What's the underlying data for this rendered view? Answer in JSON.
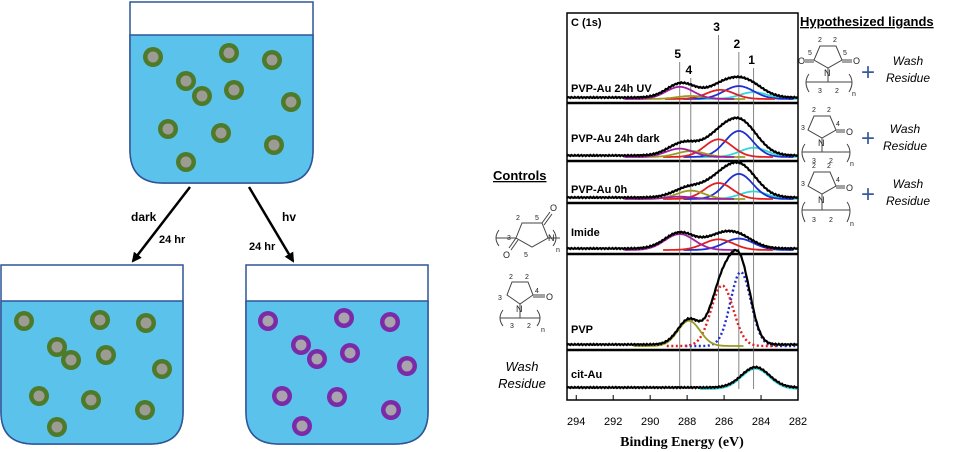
{
  "beakers": {
    "top_particle_type": "green",
    "dark": {
      "label": "dark",
      "time": "24 hr",
      "particle_type": "green"
    },
    "hv": {
      "label": "hv",
      "time": "24 hr",
      "particle_type": "purple"
    }
  },
  "colors": {
    "liquid": "#5bc3eb",
    "green_shell": "#4e7a2a",
    "green_core": "#9c9c94",
    "purple_shell": "#7b2aa8",
    "purple_core": "#a8a3ad",
    "cyan": "#33d6d6",
    "blue": "#1f2fd0",
    "red": "#e02020",
    "olive": "#9a9a20",
    "purple": "#a020a0",
    "cross": "#3a5aa0"
  },
  "xps": {
    "panel_label": "C (1s)",
    "xlabel": "Binding Energy (eV)",
    "xticks": [
      "294",
      "292",
      "290",
      "288",
      "286",
      "284",
      "282"
    ],
    "peak_lines": [
      {
        "label": "1",
        "be": 284.4
      },
      {
        "label": "2",
        "be": 285.2
      },
      {
        "label": "3",
        "be": 286.3
      },
      {
        "label": "4",
        "be": 287.8
      },
      {
        "label": "5",
        "be": 288.4
      }
    ]
  },
  "chart_data": {
    "type": "line",
    "title": "C (1s)",
    "xlabel": "Binding Energy (eV)",
    "ylabel": "",
    "xlim": [
      294.5,
      282
    ],
    "xticks": [
      294,
      292,
      290,
      288,
      286,
      284,
      282
    ],
    "series": [
      {
        "name": "PVP-Au 24h UV",
        "components": [
          {
            "color": "cyan",
            "center": 284.4,
            "height": 0.18,
            "width": 0.75
          },
          {
            "color": "blue",
            "center": 285.2,
            "height": 0.34,
            "width": 0.8
          },
          {
            "color": "red",
            "center": 286.2,
            "height": 0.24,
            "width": 0.75
          },
          {
            "color": "olive",
            "center": 287.8,
            "height": 0.08,
            "width": 0.75
          },
          {
            "color": "purple",
            "center": 288.4,
            "height": 0.32,
            "width": 0.75
          }
        ]
      },
      {
        "name": "PVP-Au 24h dark",
        "components": [
          {
            "color": "cyan",
            "center": 284.4,
            "height": 0.22,
            "width": 0.75
          },
          {
            "color": "blue",
            "center": 285.2,
            "height": 0.62,
            "width": 0.75
          },
          {
            "color": "red",
            "center": 286.3,
            "height": 0.42,
            "width": 0.75
          },
          {
            "color": "olive",
            "center": 287.8,
            "height": 0.14,
            "width": 0.75
          },
          {
            "color": "purple",
            "center": 288.4,
            "height": 0.2,
            "width": 0.75
          }
        ]
      },
      {
        "name": "PVP-Au 0h",
        "components": [
          {
            "color": "cyan",
            "center": 284.4,
            "height": 0.2,
            "width": 0.75
          },
          {
            "color": "blue",
            "center": 285.2,
            "height": 0.66,
            "width": 0.75
          },
          {
            "color": "red",
            "center": 286.3,
            "height": 0.42,
            "width": 0.75
          },
          {
            "color": "olive",
            "center": 287.8,
            "height": 0.22,
            "width": 0.75
          },
          {
            "color": "purple",
            "center": 288.4,
            "height": 0.06,
            "width": 0.75
          }
        ]
      },
      {
        "name": "Imide",
        "components": [
          {
            "color": "blue",
            "center": 285.2,
            "height": 0.3,
            "width": 0.8
          },
          {
            "color": "red",
            "center": 286.3,
            "height": 0.28,
            "width": 0.8
          },
          {
            "color": "purple",
            "center": 288.4,
            "height": 0.42,
            "width": 0.8
          }
        ]
      },
      {
        "name": "PVP",
        "components": [
          {
            "color": "blue",
            "center": 285.1,
            "height": 0.88,
            "width": 0.55,
            "dotted": true
          },
          {
            "color": "red",
            "center": 286.1,
            "height": 0.72,
            "width": 0.6,
            "dotted": true
          },
          {
            "color": "olive",
            "center": 287.9,
            "height": 0.3,
            "width": 0.6
          }
        ]
      },
      {
        "name": "cit-Au",
        "components": [
          {
            "color": "cyan",
            "center": 284.3,
            "height": 0.58,
            "width": 0.75
          }
        ]
      }
    ]
  },
  "controls": {
    "title": "Controls",
    "imide_struct": {
      "n1": "2",
      "n2": "5",
      "n3": "3",
      "n4": "5",
      "sub": "n",
      "O": "O",
      "N": "N"
    },
    "pvp_struct": {
      "n1": "2",
      "n2": "2",
      "n3": "3",
      "n4": "4",
      "n5": "3",
      "n6": "2",
      "sub": "n",
      "O": "O",
      "N": "N"
    },
    "wash_residue": [
      "Wash",
      "Residue"
    ]
  },
  "hypothesized": {
    "title": "Hypothesized ligands",
    "plus": "+",
    "wash_residue": [
      "Wash",
      "Residue"
    ],
    "s1": {
      "n1": "2",
      "n2": "2",
      "n3": "5",
      "n4": "5",
      "n5": "3",
      "n6": "2",
      "sub": "n",
      "O": "O",
      "N": "N"
    },
    "s2": {
      "n1": "2",
      "n2": "2",
      "n3": "3",
      "n4": "4",
      "n5": "3",
      "n6": "2",
      "sub": "n",
      "O": "O",
      "N": "N"
    },
    "s3": {
      "n1": "2",
      "n2": "2",
      "n3": "3",
      "n4": "4",
      "n5": "3",
      "n6": "2",
      "sub": "n",
      "O": "O",
      "N": "N"
    }
  }
}
